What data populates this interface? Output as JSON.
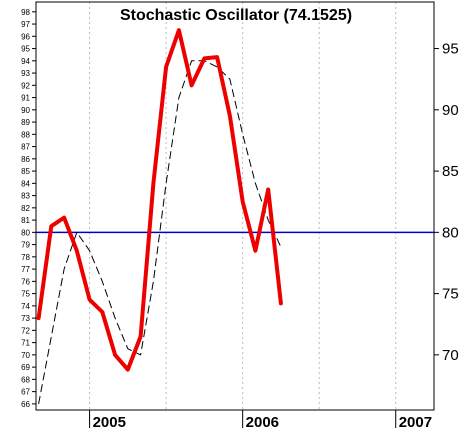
{
  "chart_data": {
    "type": "line",
    "title": "Stochastic Oscillator (74.1525)",
    "xlabel": "",
    "ylabel": "",
    "x_tick_labels": [
      "2005",
      "2006",
      "2007"
    ],
    "y_left_ticks": [
      66,
      67,
      68,
      69,
      70,
      71,
      72,
      73,
      74,
      75,
      76,
      77,
      78,
      79,
      80,
      81,
      82,
      83,
      84,
      85,
      86,
      87,
      88,
      89,
      90,
      91,
      92,
      93,
      94,
      95,
      96,
      97,
      98
    ],
    "y_right_ticks": [
      70,
      75,
      80,
      85,
      90,
      95
    ],
    "ylim": [
      65.5,
      98.8
    ],
    "x": [
      "2004-09",
      "2004-10",
      "2004-11",
      "2004-12",
      "2005-01",
      "2005-02",
      "2005-03",
      "2005-04",
      "2005-05",
      "2005-06",
      "2005-07",
      "2005-08",
      "2005-09",
      "2005-10",
      "2005-11",
      "2005-12",
      "2006-01",
      "2006-02",
      "2006-03",
      "2006-04"
    ],
    "series": [
      {
        "values": [
          73.0,
          80.5,
          81.2,
          78.5,
          74.5,
          73.5,
          70.0,
          68.8,
          71.5,
          84.0,
          93.5,
          96.5,
          92.0,
          94.2,
          94.3,
          89.5,
          82.5,
          78.5,
          83.5,
          74.2
        ]
      },
      {
        "values": [
          66.0,
          null,
          77.0,
          80.0,
          78.5,
          76.0,
          73.0,
          70.5,
          70.0,
          76.0,
          84.0,
          91.0,
          94.0,
          94.0,
          93.5,
          92.5,
          88.0,
          84.0,
          81.0,
          78.8
        ]
      }
    ],
    "hline": {
      "value": 80,
      "color": "#0000cc"
    },
    "colors": {
      "main": "#ee0000",
      "signal": "#000000",
      "grid": "#bbbbbb"
    },
    "grid": true
  }
}
